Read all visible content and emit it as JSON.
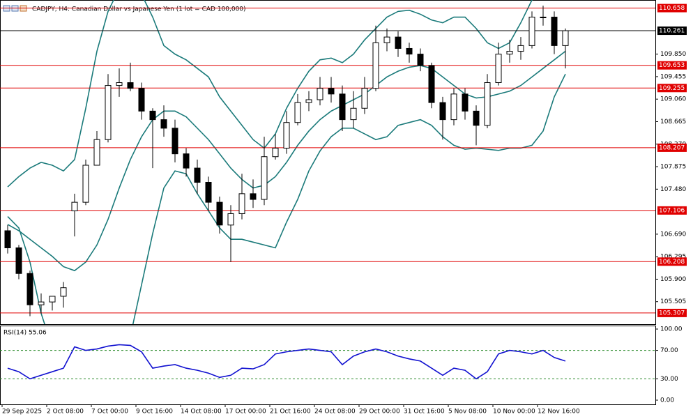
{
  "chart_data": {
    "type": "candlestick",
    "title": "CADJPY, H4:  Canadian Dollar vs Japanese Yen (1 lot = CAD 100,000)",
    "categories": [
      "29 Sep 2025",
      null,
      null,
      null,
      "2 Oct 08:00",
      null,
      null,
      null,
      "7 Oct 00:00",
      null,
      null,
      null,
      "9 Oct 16:00",
      null,
      null,
      null,
      "14 Oct 08:00",
      null,
      null,
      null,
      "17 Oct 00:00",
      null,
      null,
      null,
      "21 Oct 16:00",
      null,
      null,
      null,
      "24 Oct 08:00",
      null,
      null,
      null,
      "29 Oct 00:00",
      null,
      null,
      null,
      "31 Oct 16:00",
      null,
      null,
      null,
      "5 Nov 08:00",
      null,
      null,
      null,
      "10 Nov 00:00",
      null,
      null,
      null,
      "12 Nov 16:00",
      null,
      null
    ],
    "open": [
      106.75,
      106.45,
      106.0,
      105.45,
      105.5,
      105.6,
      107.1,
      107.25,
      107.9,
      108.35,
      109.3,
      109.35,
      109.25,
      108.85,
      108.7,
      108.55,
      108.1,
      107.85,
      107.6,
      107.25,
      106.85,
      107.05,
      107.4,
      107.3,
      108.05,
      108.2,
      108.65,
      109.0,
      109.05,
      109.25,
      109.15,
      108.7,
      108.9,
      109.25,
      110.05,
      110.15,
      109.95,
      109.85,
      109.65,
      109.0,
      108.7,
      109.15,
      108.85,
      108.6,
      109.35,
      109.85,
      109.9,
      110.0,
      110.5,
      110.5,
      110.0
    ],
    "high": [
      106.85,
      106.5,
      106.05,
      105.65,
      105.6,
      105.85,
      107.4,
      108.0,
      108.5,
      109.5,
      109.6,
      109.7,
      109.35,
      108.9,
      108.95,
      108.7,
      108.2,
      108.0,
      107.7,
      107.35,
      107.2,
      107.75,
      107.65,
      108.4,
      108.45,
      108.85,
      109.15,
      109.2,
      109.45,
      109.45,
      109.3,
      109.2,
      109.45,
      110.35,
      110.3,
      110.25,
      110.05,
      109.95,
      109.7,
      109.1,
      109.25,
      109.25,
      108.95,
      109.5,
      110.05,
      110.1,
      110.15,
      110.6,
      110.7,
      110.6,
      110.3
    ],
    "low": [
      106.35,
      105.9,
      105.25,
      105.3,
      105.35,
      105.4,
      106.65,
      107.2,
      107.9,
      108.3,
      109.1,
      109.2,
      108.7,
      107.85,
      108.4,
      107.95,
      107.7,
      107.4,
      107.1,
      106.7,
      106.2,
      106.95,
      107.15,
      107.2,
      108.0,
      108.1,
      108.6,
      108.85,
      108.95,
      109.0,
      108.5,
      108.55,
      108.8,
      109.2,
      109.9,
      109.8,
      109.7,
      109.55,
      108.9,
      108.35,
      108.6,
      108.7,
      108.25,
      108.55,
      109.3,
      109.7,
      109.75,
      109.95,
      110.35,
      109.85,
      109.6
    ],
    "close": [
      106.45,
      106.0,
      105.45,
      105.5,
      105.6,
      105.75,
      107.25,
      107.9,
      108.35,
      109.3,
      109.35,
      109.25,
      108.85,
      108.7,
      108.55,
      108.1,
      107.85,
      107.6,
      107.25,
      106.85,
      107.05,
      107.4,
      107.3,
      108.05,
      108.2,
      108.65,
      109.0,
      109.05,
      109.25,
      109.15,
      108.7,
      108.9,
      109.25,
      110.05,
      110.15,
      109.95,
      109.85,
      109.65,
      109.0,
      108.7,
      109.15,
      108.85,
      108.6,
      109.35,
      109.85,
      109.9,
      110.0,
      110.5,
      110.5,
      110.0,
      110.261
    ],
    "bollinger": {
      "color": "#1a7a7a",
      "upper": [
        107.52,
        107.7,
        107.85,
        107.95,
        107.9,
        107.8,
        108.0,
        108.9,
        109.9,
        110.6,
        111.0,
        111.1,
        110.9,
        110.5,
        110.0,
        109.85,
        109.75,
        109.6,
        109.45,
        109.1,
        108.85,
        108.6,
        108.35,
        108.2,
        108.45,
        108.9,
        109.25,
        109.55,
        109.75,
        109.78,
        109.7,
        109.85,
        110.1,
        110.3,
        110.5,
        110.6,
        110.62,
        110.55,
        110.45,
        110.4,
        110.5,
        110.5,
        110.3,
        110.05,
        109.95,
        110.05,
        110.4,
        110.8,
        111.1,
        111.2,
        111.2
      ],
      "middle": [
        106.86,
        106.75,
        106.6,
        106.45,
        106.3,
        106.12,
        106.05,
        106.2,
        106.5,
        106.95,
        107.5,
        108.0,
        108.4,
        108.7,
        108.85,
        108.85,
        108.75,
        108.55,
        108.35,
        108.1,
        107.85,
        107.65,
        107.5,
        107.55,
        107.7,
        107.95,
        108.25,
        108.5,
        108.7,
        108.85,
        108.95,
        109.05,
        109.15,
        109.3,
        109.45,
        109.55,
        109.62,
        109.65,
        109.6,
        109.45,
        109.3,
        109.15,
        109.08,
        109.1,
        109.15,
        109.2,
        109.3,
        109.45,
        109.6,
        109.75,
        109.9
      ],
      "lower": [
        107.0,
        106.8,
        106.2,
        105.3,
        104.7,
        104.4,
        104.1,
        103.5,
        103.1,
        103.3,
        104.0,
        104.9,
        105.8,
        106.7,
        107.5,
        107.8,
        107.75,
        107.4,
        107.1,
        106.8,
        106.6,
        106.6,
        106.55,
        106.5,
        106.45,
        106.9,
        107.3,
        107.8,
        108.15,
        108.4,
        108.55,
        108.55,
        108.45,
        108.35,
        108.4,
        108.6,
        108.65,
        108.7,
        108.6,
        108.4,
        108.25,
        108.18,
        108.2,
        108.18,
        108.16,
        108.2,
        108.2,
        108.25,
        108.5,
        109.1,
        109.5
      ]
    },
    "levels": [
      110.658,
      109.653,
      109.255,
      108.207,
      107.106,
      106.208,
      105.307
    ],
    "level_color": "#e00000",
    "current_price": 110.261,
    "ylim": [
      105.11,
      110.8
    ],
    "yticks": [
      {
        "value": 109.85,
        "label": "109.850"
      },
      109.455,
      {
        "value": 109.06,
        "label": "109.060"
      },
      108.665,
      {
        "value": 108.27,
        "label": "108.270"
      },
      107.875,
      {
        "value": 107.48,
        "label": "107.480"
      },
      {
        "value": 106.69,
        "label": "106.690"
      },
      106.295,
      {
        "value": 105.9,
        "label": "105.900"
      },
      105.505
    ],
    "rsi": {
      "label": "RSI(14) 55.06",
      "color": "#1010d0",
      "values": [
        45,
        40,
        30,
        35,
        40,
        45,
        75,
        70,
        72,
        76,
        78,
        77,
        68,
        45,
        48,
        50,
        45,
        42,
        38,
        32,
        35,
        45,
        44,
        50,
        65,
        68,
        70,
        72,
        70,
        68,
        50,
        62,
        68,
        72,
        68,
        62,
        58,
        55,
        45,
        35,
        45,
        42,
        30,
        40,
        65,
        70,
        68,
        65,
        70,
        60,
        55.06
      ],
      "levels": [
        70,
        30
      ],
      "ylim": [
        -5.9,
        104.9
      ],
      "yticks": [
        {
          "value": 100,
          "label": "100.00"
        },
        {
          "value": 70,
          "label": "70.00"
        },
        {
          "value": 30,
          "label": "30.00"
        },
        {
          "value": 0,
          "label": "0.00"
        }
      ]
    }
  }
}
